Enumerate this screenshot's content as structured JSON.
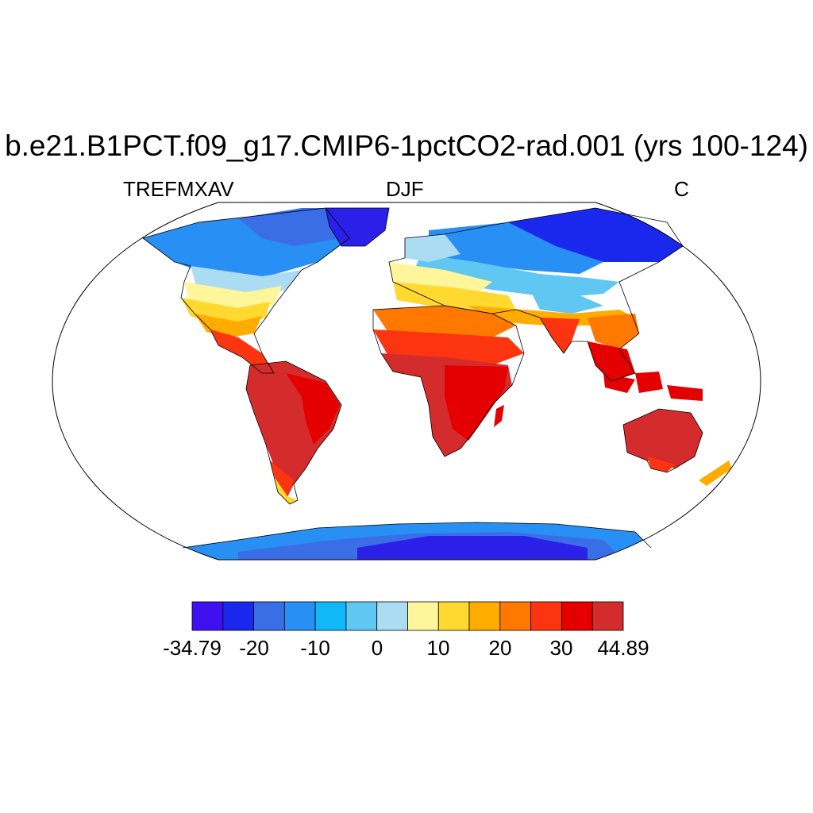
{
  "header": {
    "title": "b.e21.B1PCT.f09_g17.CMIP6-1pctCO2-rad.001 (yrs 100-124)",
    "variable": "TREFMXAV",
    "season": "DJF",
    "units": "C"
  },
  "colorbar": {
    "min_label": "-34.79",
    "max_label": "44.89",
    "tick_labels": [
      "-20",
      "-10",
      "0",
      "10",
      "20",
      "30"
    ],
    "colors": [
      "#4010f0",
      "#1a28ee",
      "#3a6ee6",
      "#2890f5",
      "#10b8f8",
      "#60c6f2",
      "#acdcf2",
      "#fff59a",
      "#ffd830",
      "#ffac00",
      "#ff7800",
      "#fc3410",
      "#e40000",
      "#d42c2c"
    ]
  },
  "map": {
    "projection": "Robinson",
    "field": "TREFMXAV",
    "season": "DJF"
  }
}
